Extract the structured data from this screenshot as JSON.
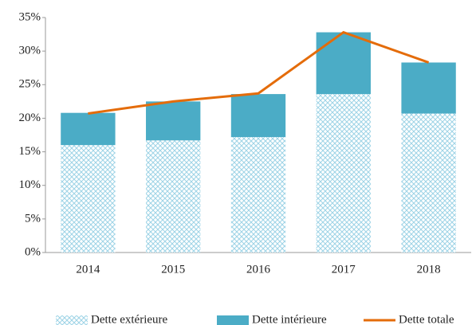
{
  "chart_data": {
    "type": "bar",
    "stacked": true,
    "categories": [
      "2014",
      "2015",
      "2016",
      "2017",
      "2018"
    ],
    "series": [
      {
        "name": "Dette extérieure",
        "type": "bar",
        "color": "#9dd3e6",
        "pattern": "hatch",
        "values": [
          16.0,
          16.7,
          17.2,
          23.6,
          20.7
        ]
      },
      {
        "name": "Dette intérieure",
        "type": "bar",
        "color": "#4bacc6",
        "values": [
          4.8,
          5.8,
          6.4,
          9.2,
          7.6
        ]
      },
      {
        "name": "Dette totale",
        "type": "line",
        "color": "#e46c0a",
        "values": [
          20.7,
          22.5,
          23.7,
          32.8,
          28.3
        ]
      }
    ],
    "ylim": [
      0,
      35
    ],
    "yticks": [
      {
        "value": 0,
        "label": "0%"
      },
      {
        "value": 5,
        "label": "5%"
      },
      {
        "value": 10,
        "label": "10%"
      },
      {
        "value": 15,
        "label": "15%"
      },
      {
        "value": 20,
        "label": "20%"
      },
      {
        "value": 25,
        "label": "25%"
      },
      {
        "value": 30,
        "label": "30%"
      },
      {
        "value": 35,
        "label": "35%"
      }
    ],
    "grid": false,
    "legend": "bottom"
  }
}
